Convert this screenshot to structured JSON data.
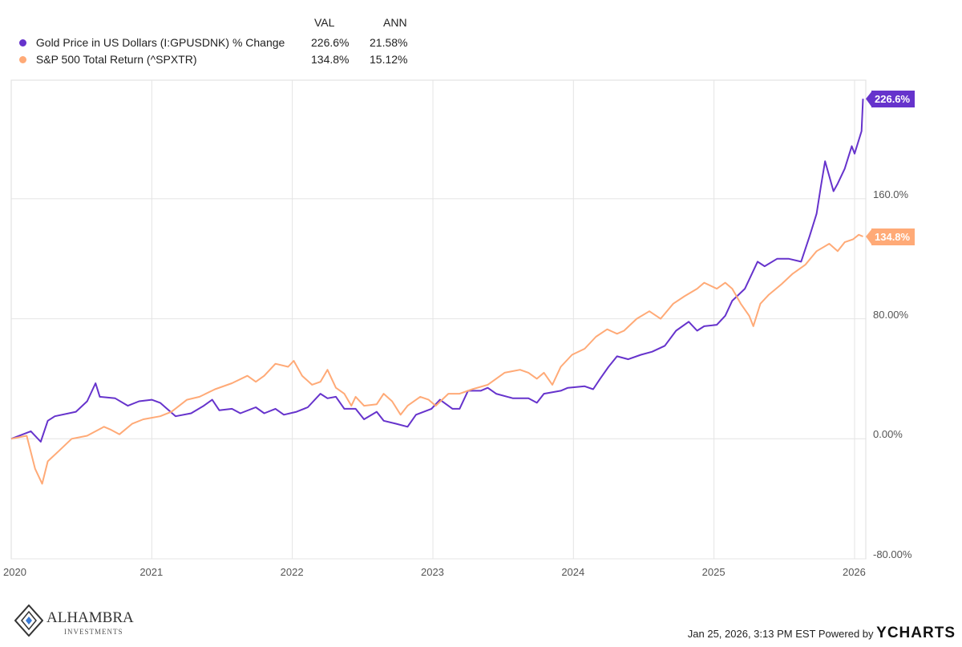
{
  "legend": {
    "col_val": "VAL",
    "col_ann": "ANN"
  },
  "footer": {
    "timestamp": "Jan 25, 2026, 3:13 PM EST",
    "powered": "Powered by",
    "brand": "YCHARTS",
    "logo_name": "ALHAMBRA",
    "logo_sub": "INVESTMENTS"
  },
  "chart_data": {
    "type": "line",
    "title": "",
    "xlabel": "",
    "ylabel": "",
    "xlim": [
      2020.0,
      2026.08
    ],
    "ylim": [
      -80,
      239
    ],
    "grid": true,
    "legend_position": "top-left",
    "x_ticks": [
      "2020",
      "2021",
      "2022",
      "2023",
      "2024",
      "2025",
      "2026"
    ],
    "y_ticks": [
      {
        "v": 160,
        "label": "160.0%"
      },
      {
        "v": 80,
        "label": "80.00%"
      },
      {
        "v": 0,
        "label": "0.00%"
      },
      {
        "v": -80,
        "label": "-80.00%"
      }
    ],
    "series": [
      {
        "name": "Gold Price in US Dollars (I:GPUSDNK) % Change",
        "val": "226.6%",
        "ann": "21.58%",
        "color": "#6633cc",
        "end_label": "226.6%",
        "x": [
          2020.0,
          2020.14,
          2020.21,
          2020.26,
          2020.31,
          2020.46,
          2020.54,
          2020.6,
          2020.63,
          2020.74,
          2020.83,
          2020.91,
          2021.0,
          2021.06,
          2021.17,
          2021.28,
          2021.37,
          2021.43,
          2021.48,
          2021.57,
          2021.63,
          2021.74,
          2021.8,
          2021.88,
          2021.94,
          2022.03,
          2022.11,
          2022.2,
          2022.25,
          2022.31,
          2022.37,
          2022.45,
          2022.51,
          2022.6,
          2022.65,
          2022.74,
          2022.82,
          2022.88,
          2022.99,
          2023.05,
          2023.14,
          2023.19,
          2023.25,
          2023.34,
          2023.39,
          2023.45,
          2023.57,
          2023.68,
          2023.74,
          2023.79,
          2023.91,
          2023.96,
          2024.08,
          2024.14,
          2024.19,
          2024.25,
          2024.31,
          2024.39,
          2024.48,
          2024.56,
          2024.65,
          2024.73,
          2024.82,
          2024.88,
          2024.93,
          2025.02,
          2025.08,
          2025.13,
          2025.22,
          2025.31,
          2025.36,
          2025.45,
          2025.53,
          2025.62,
          2025.68,
          2025.73,
          2025.76,
          2025.79,
          2025.85,
          2025.88,
          2025.93,
          2025.98,
          2026.0,
          2026.05,
          2026.06
        ],
        "y": [
          0,
          5,
          -2,
          12,
          15,
          18,
          25,
          37,
          28,
          27,
          22,
          25,
          26,
          24,
          15,
          17,
          22,
          26,
          19,
          20,
          17,
          21,
          17,
          20,
          16,
          18,
          21,
          30,
          27,
          28,
          20,
          20,
          13,
          18,
          12,
          10,
          8,
          16,
          20,
          26,
          20,
          20,
          32,
          32,
          34,
          30,
          27,
          27,
          24,
          30,
          32,
          34,
          35,
          33,
          40,
          48,
          55,
          53,
          56,
          58,
          62,
          72,
          78,
          72,
          75,
          76,
          82,
          92,
          100,
          118,
          115,
          120,
          120,
          118,
          135,
          150,
          168,
          185,
          165,
          170,
          180,
          195,
          190,
          205,
          226.6
        ]
      },
      {
        "name": "S&P 500 Total Return (^SPXTR)",
        "val": "134.8%",
        "ann": "15.12%",
        "color": "#ffaa77",
        "end_label": "134.8%",
        "x": [
          2020.0,
          2020.11,
          2020.17,
          2020.22,
          2020.26,
          2020.34,
          2020.43,
          2020.54,
          2020.66,
          2020.71,
          2020.77,
          2020.86,
          2020.94,
          2021.06,
          2021.14,
          2021.25,
          2021.34,
          2021.45,
          2021.57,
          2021.68,
          2021.74,
          2021.8,
          2021.88,
          2021.97,
          2022.01,
          2022.07,
          2022.14,
          2022.2,
          2022.25,
          2022.31,
          2022.37,
          2022.42,
          2022.45,
          2022.51,
          2022.6,
          2022.65,
          2022.71,
          2022.77,
          2022.82,
          2022.91,
          2022.97,
          2023.02,
          2023.11,
          2023.19,
          2023.28,
          2023.39,
          2023.51,
          2023.62,
          2023.68,
          2023.74,
          2023.79,
          2023.85,
          2023.91,
          2023.99,
          2024.08,
          2024.16,
          2024.24,
          2024.31,
          2024.36,
          2024.45,
          2024.54,
          2024.62,
          2024.71,
          2024.79,
          2024.88,
          2024.93,
          2025.02,
          2025.08,
          2025.13,
          2025.19,
          2025.25,
          2025.28,
          2025.33,
          2025.39,
          2025.48,
          2025.56,
          2025.65,
          2025.73,
          2025.82,
          2025.88,
          2025.93,
          2025.99,
          2026.03,
          2026.06
        ],
        "y": [
          0,
          2,
          -20,
          -30,
          -15,
          -8,
          0,
          2,
          8,
          6,
          3,
          10,
          13,
          15,
          18,
          26,
          28,
          33,
          37,
          42,
          38,
          42,
          50,
          48,
          52,
          42,
          36,
          38,
          46,
          34,
          30,
          22,
          28,
          22,
          23,
          30,
          25,
          16,
          22,
          28,
          26,
          22,
          30,
          30,
          33,
          36,
          44,
          46,
          44,
          40,
          44,
          36,
          48,
          56,
          60,
          68,
          73,
          70,
          72,
          80,
          85,
          80,
          90,
          95,
          100,
          104,
          100,
          104,
          100,
          90,
          82,
          75,
          90,
          96,
          103,
          110,
          116,
          125,
          130,
          125,
          131,
          133,
          136,
          134.8
        ]
      }
    ]
  }
}
